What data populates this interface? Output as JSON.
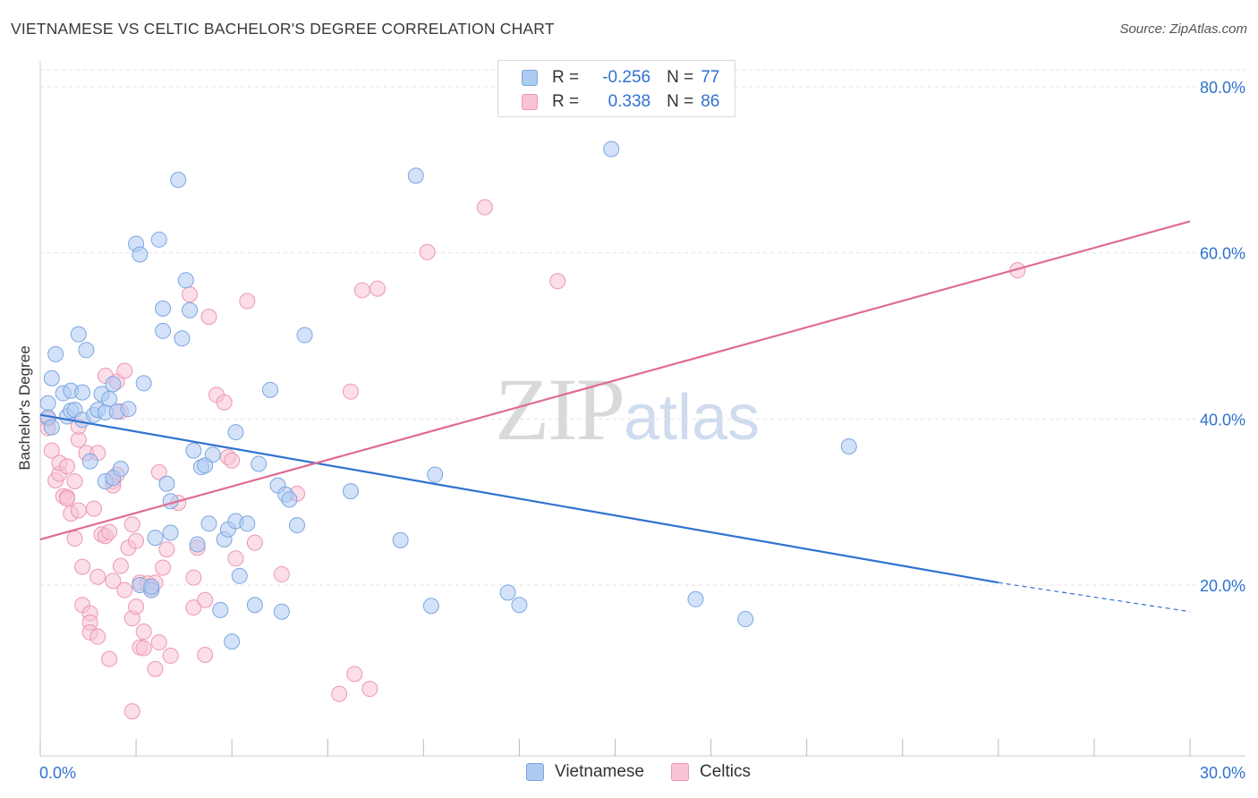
{
  "title": "VIETNAMESE VS CELTIC BACHELOR'S DEGREE CORRELATION CHART",
  "source": "Source: ZipAtlas.com",
  "watermark": {
    "zip": "ZIP",
    "atlas": "atlas"
  },
  "legend": {
    "r_label": "R =",
    "n_label": "N =",
    "rows": [
      {
        "r": "-0.256",
        "n": "77"
      },
      {
        "r": "0.338",
        "n": "86"
      }
    ]
  },
  "colors": {
    "blue_fill": "#aecbf2",
    "blue_stroke": "#7ba6e0",
    "blue_line": "#2f72d0",
    "pink_fill": "#f8c3d4",
    "pink_stroke": "#ec97b4",
    "pink_line": "#e06b93",
    "tick_label": "#2f72d0",
    "grid": "#e3e3e3"
  },
  "chart_data": {
    "type": "scatter",
    "title": "VIETNAMESE VS CELTIC BACHELOR'S DEGREE CORRELATION CHART",
    "xlabel": "",
    "ylabel": "Bachelor's Degree",
    "xlim": [
      0,
      30
    ],
    "ylim": [
      0,
      82
    ],
    "x_tick_labels": [
      "0.0%",
      "30.0%"
    ],
    "y_ticks": [
      20,
      40,
      60,
      80
    ],
    "y_tick_labels": [
      "20.0%",
      "40.0%",
      "60.0%",
      "80.0%"
    ],
    "series": [
      {
        "name": "Vietnamese",
        "r": -0.256,
        "n": 77,
        "trend": {
          "x0": 0,
          "y0": 40.5,
          "x1": 25,
          "y1": 20.3,
          "dash_x1": 30,
          "dash_y1": 16.8
        },
        "points": [
          [
            0.2,
            41.9
          ],
          [
            0.2,
            40.2
          ],
          [
            0.3,
            44.9
          ],
          [
            0.4,
            47.8
          ],
          [
            0.6,
            43.1
          ],
          [
            0.7,
            40.3
          ],
          [
            0.8,
            41.0
          ],
          [
            0.8,
            43.4
          ],
          [
            0.9,
            41.1
          ],
          [
            1.0,
            50.2
          ],
          [
            1.1,
            39.9
          ],
          [
            1.1,
            43.2
          ],
          [
            1.2,
            48.3
          ],
          [
            1.3,
            34.9
          ],
          [
            1.4,
            40.5
          ],
          [
            1.5,
            41.1
          ],
          [
            1.6,
            43.0
          ],
          [
            1.7,
            40.8
          ],
          [
            1.7,
            32.5
          ],
          [
            1.8,
            42.4
          ],
          [
            1.9,
            44.2
          ],
          [
            1.9,
            32.9
          ],
          [
            2.0,
            40.9
          ],
          [
            2.1,
            34.0
          ],
          [
            2.3,
            41.2
          ],
          [
            2.5,
            61.1
          ],
          [
            2.6,
            59.8
          ],
          [
            2.7,
            44.3
          ],
          [
            2.6,
            20.0
          ],
          [
            2.9,
            19.4
          ],
          [
            3.0,
            25.7
          ],
          [
            3.1,
            61.6
          ],
          [
            3.2,
            53.3
          ],
          [
            3.2,
            50.6
          ],
          [
            3.3,
            32.2
          ],
          [
            3.4,
            26.3
          ],
          [
            3.4,
            30.1
          ],
          [
            3.6,
            68.8
          ],
          [
            3.7,
            49.7
          ],
          [
            3.8,
            56.7
          ],
          [
            3.9,
            53.1
          ],
          [
            4.0,
            36.2
          ],
          [
            4.1,
            24.9
          ],
          [
            4.2,
            34.2
          ],
          [
            4.3,
            34.4
          ],
          [
            4.4,
            27.4
          ],
          [
            4.5,
            35.7
          ],
          [
            4.7,
            17.0
          ],
          [
            4.8,
            25.5
          ],
          [
            4.9,
            26.7
          ],
          [
            5.0,
            13.2
          ],
          [
            5.1,
            27.7
          ],
          [
            5.1,
            38.4
          ],
          [
            5.2,
            21.1
          ],
          [
            5.4,
            27.4
          ],
          [
            5.6,
            17.6
          ],
          [
            5.7,
            34.6
          ],
          [
            6.0,
            43.5
          ],
          [
            6.2,
            32.0
          ],
          [
            6.3,
            16.8
          ],
          [
            6.4,
            30.9
          ],
          [
            6.5,
            30.3
          ],
          [
            6.7,
            27.2
          ],
          [
            6.9,
            50.1
          ],
          [
            8.1,
            31.3
          ],
          [
            9.4,
            25.4
          ],
          [
            9.8,
            69.3
          ],
          [
            10.2,
            17.5
          ],
          [
            10.3,
            33.3
          ],
          [
            12.2,
            19.1
          ],
          [
            12.5,
            17.6
          ],
          [
            14.9,
            72.5
          ],
          [
            17.1,
            18.3
          ],
          [
            18.4,
            15.9
          ],
          [
            21.1,
            36.7
          ],
          [
            2.9,
            19.8
          ],
          [
            0.3,
            39.0
          ]
        ]
      },
      {
        "name": "Celtics",
        "r": 0.338,
        "n": 86,
        "trend": {
          "x0": 0,
          "y0": 25.5,
          "x1": 30,
          "y1": 63.8
        },
        "points": [
          [
            0.2,
            40.0
          ],
          [
            0.2,
            38.9
          ],
          [
            0.3,
            36.2
          ],
          [
            0.4,
            32.6
          ],
          [
            0.5,
            33.4
          ],
          [
            0.5,
            34.7
          ],
          [
            0.6,
            30.7
          ],
          [
            0.7,
            30.6
          ],
          [
            0.7,
            34.3
          ],
          [
            0.7,
            30.4
          ],
          [
            0.8,
            28.6
          ],
          [
            0.9,
            32.5
          ],
          [
            0.9,
            25.6
          ],
          [
            1.0,
            37.5
          ],
          [
            1.0,
            39.1
          ],
          [
            1.0,
            29.0
          ],
          [
            1.1,
            22.2
          ],
          [
            1.1,
            17.6
          ],
          [
            1.2,
            35.9
          ],
          [
            1.3,
            16.6
          ],
          [
            1.3,
            15.5
          ],
          [
            1.3,
            14.3
          ],
          [
            1.4,
            29.2
          ],
          [
            1.5,
            35.9
          ],
          [
            1.5,
            21.0
          ],
          [
            1.5,
            13.8
          ],
          [
            1.6,
            26.1
          ],
          [
            1.7,
            25.9
          ],
          [
            1.7,
            45.2
          ],
          [
            1.8,
            26.4
          ],
          [
            1.8,
            11.1
          ],
          [
            1.9,
            32.5
          ],
          [
            1.9,
            20.5
          ],
          [
            2.0,
            44.5
          ],
          [
            2.0,
            33.3
          ],
          [
            2.1,
            40.9
          ],
          [
            2.1,
            22.3
          ],
          [
            2.2,
            45.8
          ],
          [
            2.2,
            19.4
          ],
          [
            2.3,
            24.5
          ],
          [
            2.4,
            4.8
          ],
          [
            2.4,
            27.3
          ],
          [
            2.4,
            16.0
          ],
          [
            2.5,
            25.3
          ],
          [
            2.5,
            17.4
          ],
          [
            2.6,
            12.5
          ],
          [
            2.6,
            20.3
          ],
          [
            2.7,
            14.4
          ],
          [
            2.8,
            20.2
          ],
          [
            2.9,
            19.4
          ],
          [
            3.0,
            20.3
          ],
          [
            3.0,
            9.9
          ],
          [
            3.1,
            33.6
          ],
          [
            3.1,
            13.1
          ],
          [
            3.2,
            22.1
          ],
          [
            3.3,
            24.3
          ],
          [
            3.4,
            11.5
          ],
          [
            3.6,
            29.9
          ],
          [
            3.9,
            55.0
          ],
          [
            4.0,
            17.3
          ],
          [
            4.0,
            20.9
          ],
          [
            4.1,
            24.5
          ],
          [
            4.3,
            18.2
          ],
          [
            4.3,
            11.6
          ],
          [
            4.4,
            52.3
          ],
          [
            4.6,
            42.9
          ],
          [
            4.8,
            42.0
          ],
          [
            4.9,
            35.4
          ],
          [
            5.0,
            35.0
          ],
          [
            5.1,
            23.2
          ],
          [
            5.4,
            54.2
          ],
          [
            5.6,
            25.1
          ],
          [
            6.3,
            21.3
          ],
          [
            6.7,
            31.0
          ],
          [
            7.8,
            6.9
          ],
          [
            8.1,
            43.3
          ],
          [
            8.2,
            9.3
          ],
          [
            8.4,
            55.5
          ],
          [
            8.6,
            7.5
          ],
          [
            8.8,
            55.7
          ],
          [
            10.1,
            60.1
          ],
          [
            11.6,
            65.5
          ],
          [
            13.5,
            56.6
          ],
          [
            25.5,
            57.9
          ],
          [
            1.9,
            32.0
          ],
          [
            2.7,
            12.4
          ]
        ]
      }
    ]
  }
}
